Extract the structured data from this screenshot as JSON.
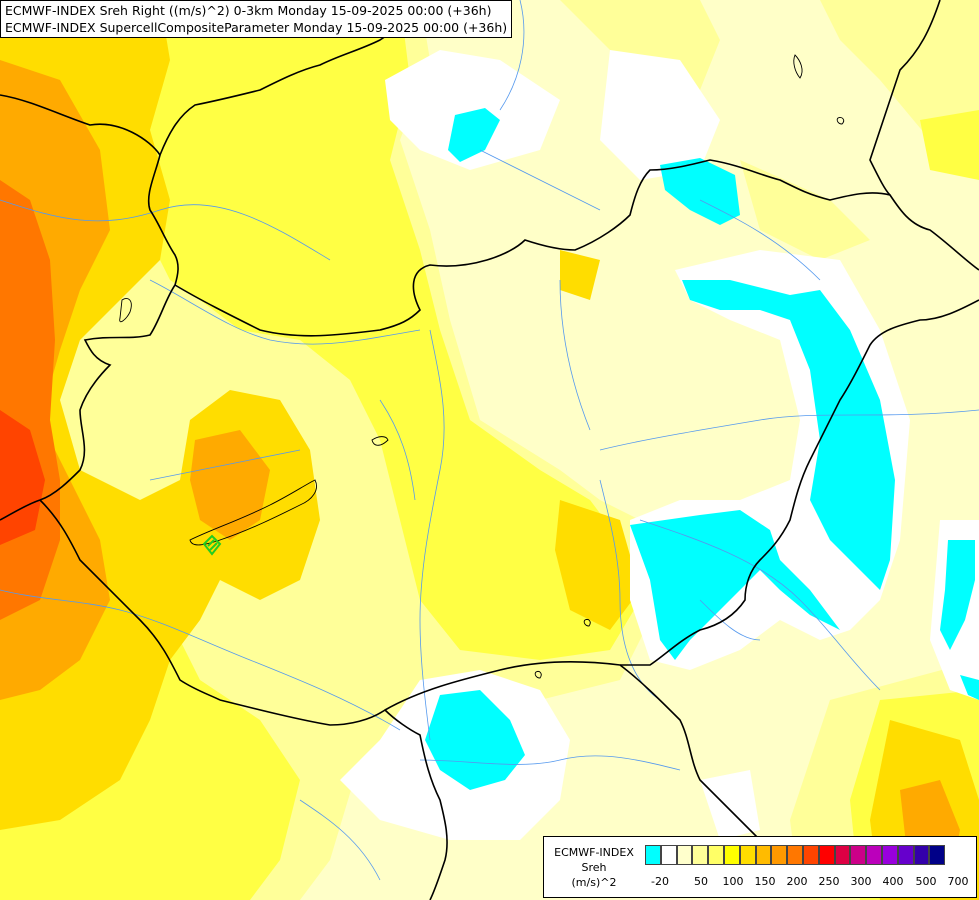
{
  "title": {
    "line1": "ECMWF-INDEX Sreh Right ((m/s)^2) 0-3km Monday 15-09-2025 00:00 (+36h)",
    "line2": "ECMWF-INDEX SupercellCompositeParameter Monday 15-09-2025 00:00 (+36h)"
  },
  "legend": {
    "line1": "ECMWF-INDEX",
    "line2": "Sreh",
    "line3": "(m/s)^2",
    "colors": [
      "#00ffff",
      "#ffffff",
      "#ffffcc",
      "#ffff99",
      "#ffff66",
      "#ffff00",
      "#ffdd00",
      "#ffbb00",
      "#ff9900",
      "#ff7700",
      "#ff4400",
      "#ff0000",
      "#dd0044",
      "#cc0088",
      "#bb00bb",
      "#9900dd",
      "#6600cc",
      "#3300aa",
      "#000088"
    ],
    "ticks": [
      "-20",
      "50",
      "100",
      "150",
      "200",
      "250",
      "300",
      "400",
      "500",
      "700"
    ]
  },
  "colors": {
    "cyan": "#00ffff",
    "white": "#ffffff",
    "pale_yellow": "#ffffc8",
    "light_yellow": "#ffff99",
    "yellow": "#ffff44",
    "gold": "#ffdd00",
    "orange": "#ffaa00",
    "dark_orange": "#ff7700",
    "red_orange": "#ff4400",
    "border": "#000000",
    "river": "#4488ff",
    "scp_marker": "#22cc22"
  }
}
